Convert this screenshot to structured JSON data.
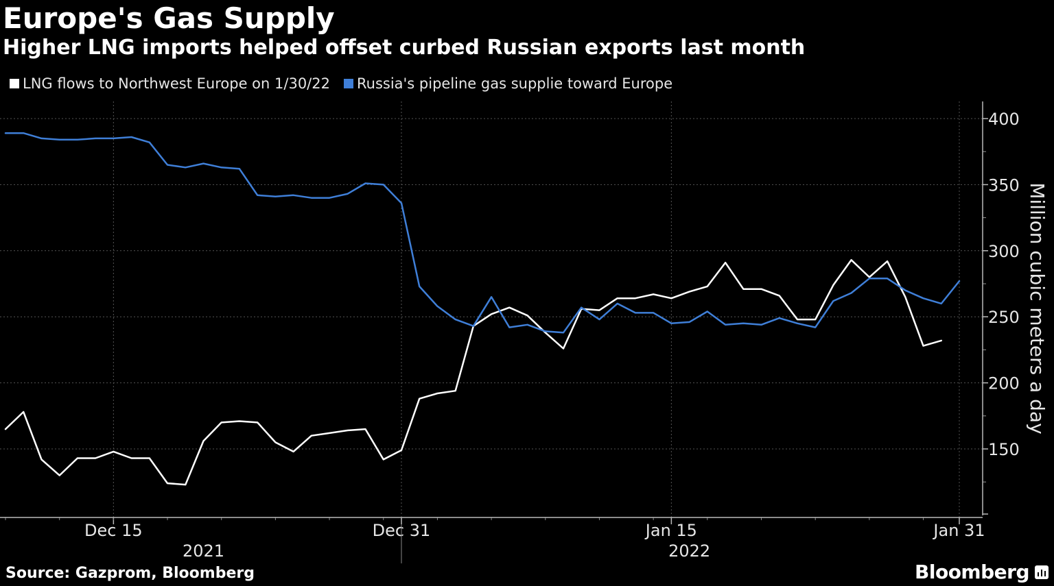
{
  "chart_data": {
    "type": "line",
    "title": "Europe's Gas Supply",
    "subtitle": "Higher LNG imports helped offset curbed Russian exports last month",
    "ylabel": "Million cubic meters a day",
    "ylim": [
      100,
      400
    ],
    "yticks": [
      150,
      200,
      250,
      300,
      350,
      400
    ],
    "x_start": "2021-12-09",
    "x_end": "2022-01-31",
    "xticks": [
      {
        "date": "2021-12-15",
        "label": "Dec 15"
      },
      {
        "date": "2021-12-31",
        "label": "Dec 31"
      },
      {
        "date": "2022-01-15",
        "label": "Jan 15"
      },
      {
        "date": "2022-01-31",
        "label": "Jan 31"
      }
    ],
    "year_labels": [
      {
        "label": "2021",
        "date": "2021-12-20"
      },
      {
        "label": "2022",
        "date": "2022-01-16"
      }
    ],
    "year_divider": "2021-12-31",
    "grid": true,
    "legend_position": "top-left",
    "series": [
      {
        "name": "LNG flows to Northwest Europe on 1/30/22",
        "color": "#ffffff",
        "x": [
          "2021-12-09",
          "2021-12-10",
          "2021-12-11",
          "2021-12-12",
          "2021-12-13",
          "2021-12-14",
          "2021-12-15",
          "2021-12-16",
          "2021-12-17",
          "2021-12-18",
          "2021-12-19",
          "2021-12-20",
          "2021-12-21",
          "2021-12-22",
          "2021-12-23",
          "2021-12-24",
          "2021-12-25",
          "2021-12-26",
          "2021-12-27",
          "2021-12-28",
          "2021-12-29",
          "2021-12-30",
          "2021-12-31",
          "2022-01-01",
          "2022-01-02",
          "2022-01-03",
          "2022-01-04",
          "2022-01-05",
          "2022-01-06",
          "2022-01-07",
          "2022-01-08",
          "2022-01-09",
          "2022-01-10",
          "2022-01-11",
          "2022-01-12",
          "2022-01-13",
          "2022-01-14",
          "2022-01-15",
          "2022-01-16",
          "2022-01-17",
          "2022-01-18",
          "2022-01-19",
          "2022-01-20",
          "2022-01-21",
          "2022-01-22",
          "2022-01-23",
          "2022-01-24",
          "2022-01-25",
          "2022-01-26",
          "2022-01-27",
          "2022-01-28",
          "2022-01-29",
          "2022-01-30"
        ],
        "values": [
          165,
          178,
          142,
          130,
          143,
          143,
          148,
          143,
          143,
          124,
          123,
          156,
          170,
          171,
          170,
          155,
          148,
          160,
          162,
          164,
          165,
          142,
          149,
          188,
          192,
          194,
          243,
          252,
          257,
          251,
          238,
          226,
          256,
          255,
          264,
          264,
          267,
          264,
          269,
          273,
          291,
          271,
          271,
          266,
          248,
          248,
          274,
          293,
          280,
          292,
          265,
          228,
          232
        ]
      },
      {
        "name": "Russia's pipeline gas supplie toward Europe",
        "color": "#3f7fd8",
        "x": [
          "2021-12-09",
          "2021-12-10",
          "2021-12-11",
          "2021-12-12",
          "2021-12-13",
          "2021-12-14",
          "2021-12-15",
          "2021-12-16",
          "2021-12-17",
          "2021-12-18",
          "2021-12-19",
          "2021-12-20",
          "2021-12-21",
          "2021-12-22",
          "2021-12-23",
          "2021-12-24",
          "2021-12-25",
          "2021-12-26",
          "2021-12-27",
          "2021-12-28",
          "2021-12-29",
          "2021-12-30",
          "2021-12-31",
          "2022-01-01",
          "2022-01-02",
          "2022-01-03",
          "2022-01-04",
          "2022-01-05",
          "2022-01-06",
          "2022-01-07",
          "2022-01-08",
          "2022-01-09",
          "2022-01-10",
          "2022-01-11",
          "2022-01-12",
          "2022-01-13",
          "2022-01-14",
          "2022-01-15",
          "2022-01-16",
          "2022-01-17",
          "2022-01-18",
          "2022-01-19",
          "2022-01-20",
          "2022-01-21",
          "2022-01-22",
          "2022-01-23",
          "2022-01-24",
          "2022-01-25",
          "2022-01-26",
          "2022-01-27",
          "2022-01-28",
          "2022-01-29",
          "2022-01-30",
          "2022-01-31"
        ],
        "values": [
          389,
          389,
          385,
          384,
          384,
          385,
          385,
          386,
          382,
          365,
          363,
          366,
          363,
          362,
          342,
          341,
          342,
          340,
          340,
          343,
          351,
          350,
          336,
          273,
          258,
          248,
          243,
          265,
          242,
          244,
          239,
          238,
          257,
          248,
          260,
          253,
          253,
          245,
          246,
          254,
          244,
          245,
          244,
          249,
          245,
          242,
          262,
          268,
          279,
          279,
          270,
          264,
          260,
          277
        ]
      }
    ]
  },
  "source": "Source: Gazprom, Bloomberg",
  "brand": "Bloomberg"
}
